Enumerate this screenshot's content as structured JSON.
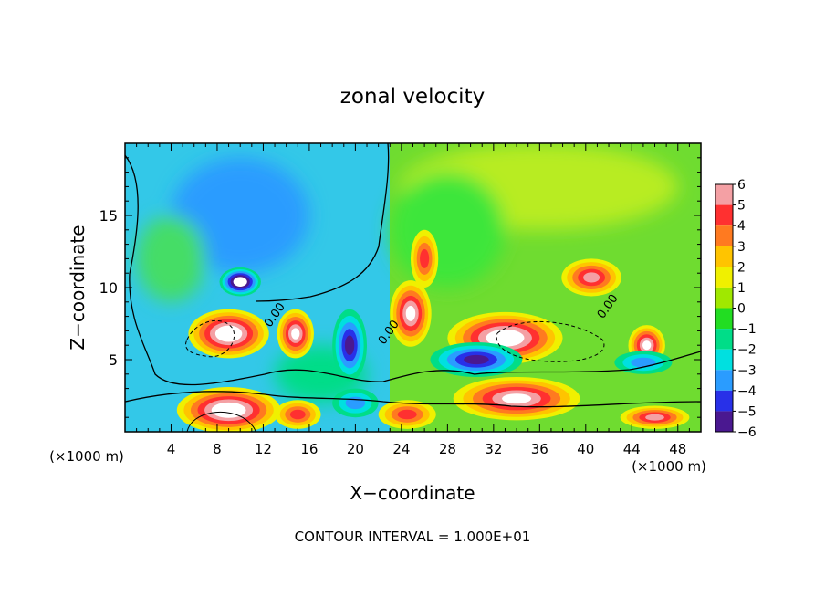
{
  "chart_data": {
    "type": "heatmap",
    "title": "zonal velocity",
    "xlabel": "X−coordinate",
    "ylabel": "Z−coordinate",
    "x_unit_left": "(×1000 m)",
    "x_unit_right": "(×1000 m)",
    "footer": "CONTOUR INTERVAL = 1.000E+01",
    "xlim": [
      0,
      50
    ],
    "ylim": [
      0,
      20
    ],
    "x_ticks": [
      4,
      8,
      12,
      16,
      20,
      24,
      28,
      32,
      36,
      40,
      44,
      48
    ],
    "y_ticks": [
      5,
      10,
      15
    ],
    "colorbar": {
      "range": [
        -6,
        6
      ],
      "labels": [
        6,
        5,
        4,
        3,
        2,
        1,
        0,
        -1,
        -2,
        -3,
        -4,
        -5,
        -6
      ],
      "colors": [
        "#f4a0a4",
        "#ff3030",
        "#ff7a20",
        "#ffc400",
        "#f0f000",
        "#a0e800",
        "#22dd22",
        "#00dd88",
        "#00e0e0",
        "#2a9cff",
        "#2830e8",
        "#4a1890"
      ]
    },
    "contour_labels": [
      {
        "text": "0.00",
        "x": 12.6,
        "y": 7.2
      },
      {
        "text": "0.00",
        "x": 22.5,
        "y": 6.0
      },
      {
        "text": "0.00",
        "x": 41.5,
        "y": 7.8
      }
    ],
    "features": [
      {
        "x": 9.0,
        "y": 6.8,
        "rx": 3.5,
        "ry": 1.7,
        "v": 7
      },
      {
        "x": 10.0,
        "y": 10.4,
        "rx": 1.8,
        "ry": 1.0,
        "v": -7
      },
      {
        "x": 14.8,
        "y": 6.8,
        "rx": 1.6,
        "ry": 1.7,
        "v": 6
      },
      {
        "x": 19.5,
        "y": 6.0,
        "rx": 1.5,
        "ry": 2.5,
        "v": -5
      },
      {
        "x": 24.8,
        "y": 8.2,
        "rx": 1.8,
        "ry": 2.3,
        "v": 6
      },
      {
        "x": 26.0,
        "y": 12.0,
        "rx": 1.2,
        "ry": 2.0,
        "v": 4
      },
      {
        "x": 33.0,
        "y": 6.5,
        "rx": 5.0,
        "ry": 1.8,
        "v": 7
      },
      {
        "x": 30.5,
        "y": 5.0,
        "rx": 4.0,
        "ry": 1.2,
        "v": -5
      },
      {
        "x": 40.5,
        "y": 10.7,
        "rx": 2.6,
        "ry": 1.3,
        "v": 5
      },
      {
        "x": 45.3,
        "y": 6.0,
        "rx": 1.6,
        "ry": 1.4,
        "v": 6
      },
      {
        "x": 45.0,
        "y": 4.8,
        "rx": 2.5,
        "ry": 0.8,
        "v": -3
      },
      {
        "x": 9.0,
        "y": 1.5,
        "rx": 4.5,
        "ry": 1.6,
        "v": 7
      },
      {
        "x": 34.0,
        "y": 2.3,
        "rx": 5.5,
        "ry": 1.5,
        "v": 6
      },
      {
        "x": 46.0,
        "y": 1.0,
        "rx": 3.0,
        "ry": 0.8,
        "v": 5
      },
      {
        "x": 24.5,
        "y": 1.2,
        "rx": 2.5,
        "ry": 1.0,
        "v": 4
      },
      {
        "x": 15.0,
        "y": 1.2,
        "rx": 2.0,
        "ry": 1.0,
        "v": 4
      },
      {
        "x": 20.0,
        "y": 2.0,
        "rx": 2.0,
        "ry": 1.0,
        "v": -3
      }
    ]
  }
}
